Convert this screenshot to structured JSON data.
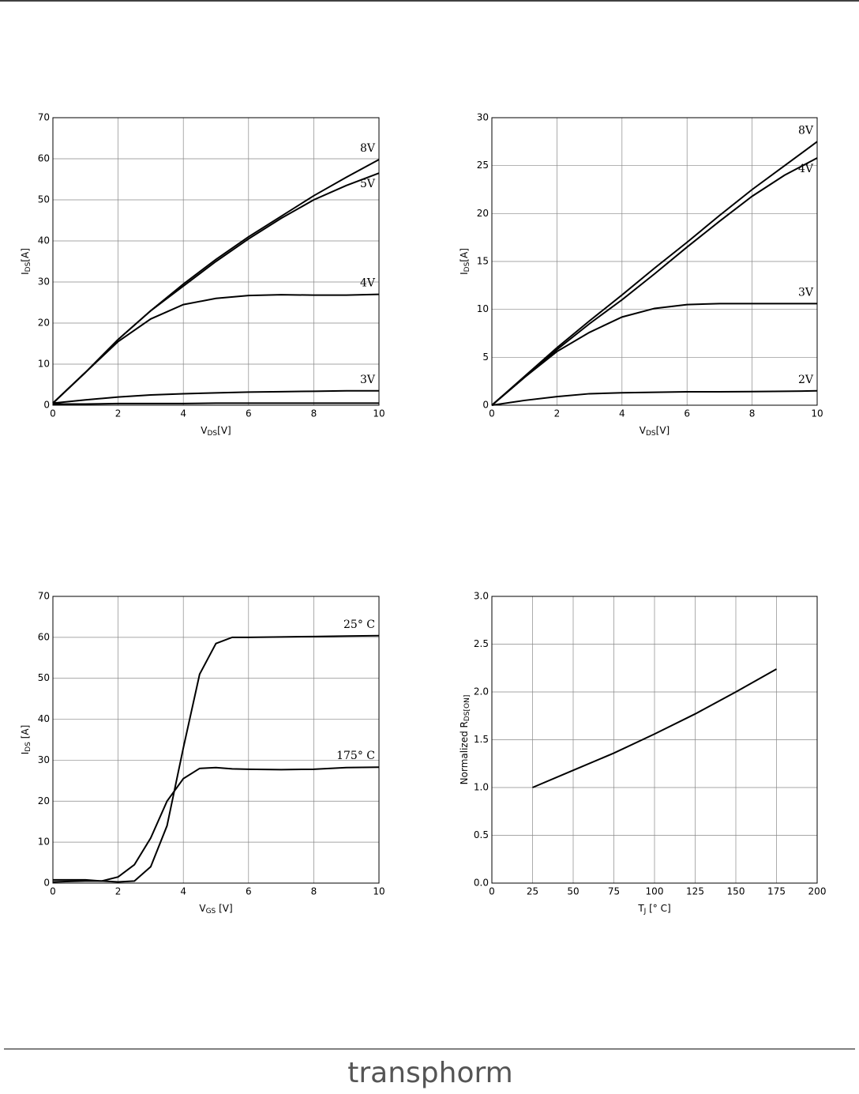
{
  "chart_data": [
    {
      "type": "line",
      "xlabel": {
        "text": "V",
        "sub": "DS",
        "after": "[V]"
      },
      "ylabel": {
        "text": "I",
        "sub": "DS",
        "after": "[A]"
      },
      "x": [
        0,
        1,
        2,
        3,
        4,
        5,
        6,
        7,
        8,
        9,
        10
      ],
      "xlim": [
        0,
        10
      ],
      "xticks": [
        0,
        2,
        4,
        6,
        8,
        10
      ],
      "ylim": [
        0,
        70
      ],
      "yticks": [
        0,
        10,
        20,
        30,
        40,
        50,
        60,
        70
      ],
      "grid": true,
      "series": [
        {
          "name": "8V",
          "color": "#000000",
          "values": [
            0.5,
            8,
            16,
            23,
            29.5,
            35.5,
            41,
            46,
            51,
            55.5,
            59.8
          ]
        },
        {
          "name": "5V",
          "color": "#000000",
          "values": [
            0.5,
            8,
            16,
            23,
            29,
            35,
            40.5,
            45.5,
            50,
            53.5,
            56.5
          ]
        },
        {
          "name": "4V",
          "color": "#000000",
          "values": [
            0.5,
            8,
            15.5,
            21,
            24.5,
            26,
            26.7,
            26.9,
            26.8,
            26.8,
            27
          ]
        },
        {
          "name": "3V",
          "color": "#000000",
          "values": [
            0.5,
            1.3,
            2,
            2.5,
            2.8,
            3,
            3.2,
            3.3,
            3.4,
            3.5,
            3.5
          ]
        },
        {
          "color": "#000000",
          "values": [
            0.3,
            0.3,
            0.4,
            0.4,
            0.4,
            0.5,
            0.5,
            0.5,
            0.5,
            0.5,
            0.5
          ]
        }
      ]
    },
    {
      "type": "line",
      "xlabel": {
        "text": "V",
        "sub": "DS",
        "after": "[V]"
      },
      "ylabel": {
        "text": "I",
        "sub": "DS",
        "after": "[A]"
      },
      "x": [
        0,
        1,
        2,
        3,
        4,
        5,
        6,
        7,
        8,
        9,
        10
      ],
      "xlim": [
        0,
        10
      ],
      "xticks": [
        0,
        2,
        4,
        6,
        8,
        10
      ],
      "ylim": [
        0,
        30
      ],
      "yticks": [
        0,
        5,
        10,
        15,
        20,
        25,
        30
      ],
      "grid": true,
      "series": [
        {
          "name": "8V",
          "color": "#000000",
          "values": [
            0,
            3,
            6,
            8.8,
            11.5,
            14.3,
            17,
            19.8,
            22.5,
            25,
            27.5
          ]
        },
        {
          "name": "4V",
          "color": "#000000",
          "values": [
            0,
            2.9,
            5.8,
            8.5,
            11,
            13.7,
            16.5,
            19.2,
            21.8,
            24,
            25.8
          ]
        },
        {
          "name": "3V",
          "color": "#000000",
          "values": [
            0,
            2.9,
            5.6,
            7.6,
            9.2,
            10.1,
            10.5,
            10.6,
            10.6,
            10.6,
            10.6
          ]
        },
        {
          "name": "2V",
          "color": "#000000",
          "values": [
            0,
            0.5,
            0.9,
            1.2,
            1.3,
            1.35,
            1.4,
            1.4,
            1.42,
            1.45,
            1.5
          ]
        }
      ]
    },
    {
      "type": "line",
      "xlabel": {
        "text": "V",
        "sub": "GS",
        "after": " [V]"
      },
      "ylabel": {
        "text": "I",
        "sub": "DS",
        "after": " [A]"
      },
      "x": [
        0,
        0.5,
        1,
        1.5,
        2,
        2.5,
        3,
        3.5,
        4,
        4.5,
        5,
        5.5,
        6,
        7,
        8,
        9,
        10
      ],
      "xlim": [
        0,
        10
      ],
      "xticks": [
        0,
        2,
        4,
        6,
        8,
        10
      ],
      "ylim": [
        0,
        70
      ],
      "yticks": [
        0,
        10,
        20,
        30,
        40,
        50,
        60,
        70
      ],
      "grid": true,
      "series": [
        {
          "name": "25° C",
          "color": "#000000",
          "values": [
            0.3,
            0.4,
            0.5,
            0.5,
            0.3,
            0.5,
            4,
            14,
            33,
            51,
            58.5,
            60,
            60,
            60.1,
            60.2,
            60.3,
            60.4
          ]
        },
        {
          "name": "175° C",
          "color": "#000000",
          "values": [
            0.8,
            0.8,
            0.8,
            0.5,
            1.5,
            4.5,
            11,
            20,
            25.5,
            28,
            28.2,
            27.9,
            27.8,
            27.7,
            27.8,
            28.2,
            28.3
          ]
        }
      ]
    },
    {
      "type": "line",
      "xlabel": {
        "text": "T",
        "sub": "J",
        "after": " [° C]"
      },
      "ylabel": {
        "text": "Normalized R",
        "sub": "DS[ON]"
      },
      "x": [
        25,
        50,
        75,
        100,
        125,
        150,
        175
      ],
      "xlim": [
        0,
        200
      ],
      "xticks": [
        0,
        25,
        50,
        75,
        100,
        125,
        150,
        175,
        200
      ],
      "ylim": [
        0,
        3
      ],
      "yticks": [
        {
          "value": 0,
          "label": "0.0"
        },
        {
          "value": 0.5,
          "label": "0.5"
        },
        {
          "value": 1,
          "label": "1.0"
        },
        {
          "value": 1.5,
          "label": "1.5"
        },
        {
          "value": 2,
          "label": "2.0"
        },
        {
          "value": 2.5,
          "label": "2.5"
        },
        {
          "value": 3,
          "label": "3.0"
        }
      ],
      "grid": true,
      "series": [
        {
          "color": "#000000",
          "values": [
            1.0,
            1.18,
            1.36,
            1.56,
            1.77,
            2.0,
            2.24
          ]
        }
      ]
    }
  ],
  "footer": {
    "logo": "transphorm"
  }
}
